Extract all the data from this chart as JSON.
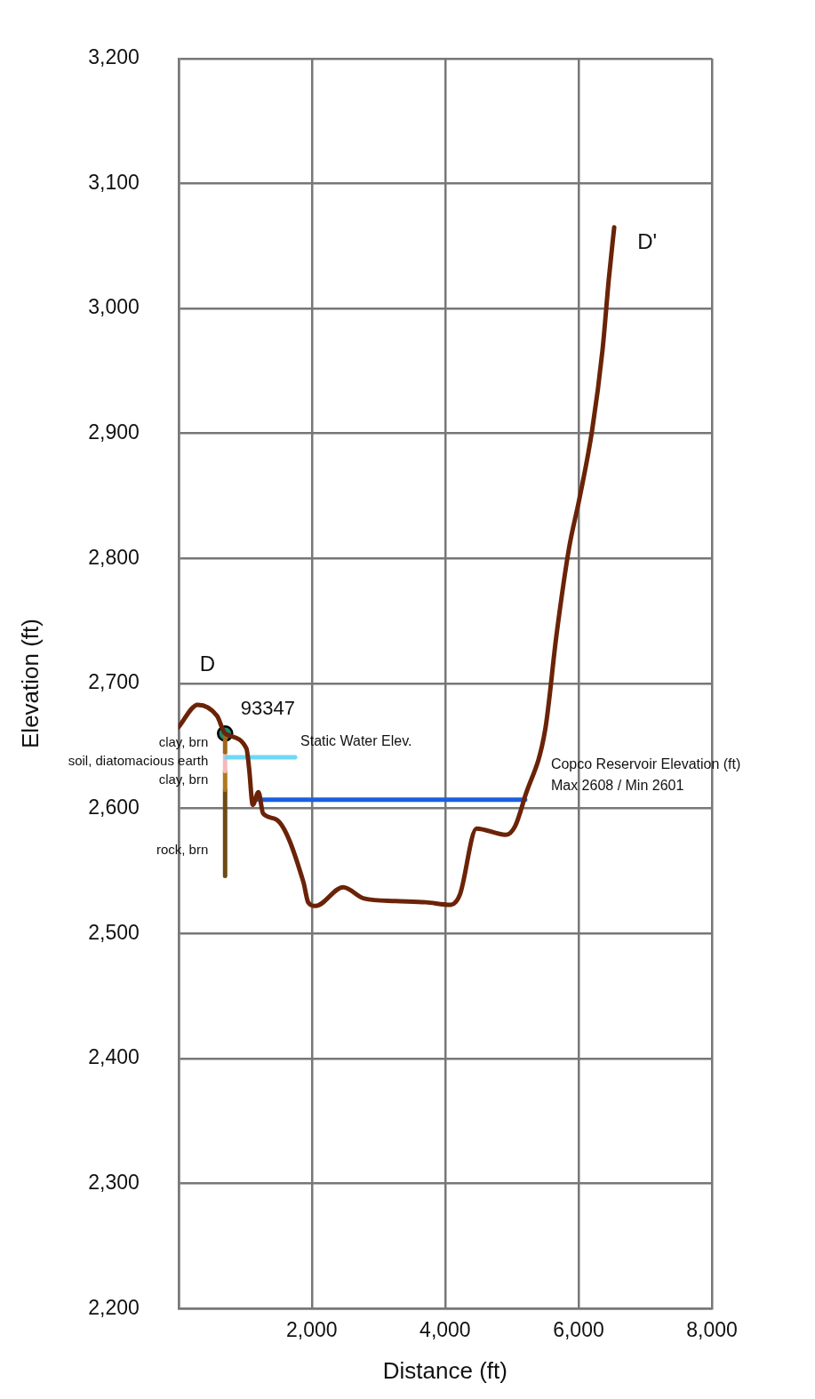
{
  "chart_data": {
    "type": "line",
    "xlabel": "Distance (ft)",
    "ylabel": "Elevation (ft)",
    "xlim": [
      0,
      8000
    ],
    "ylim": [
      2200,
      3200
    ],
    "xticks": [
      {
        "value": 0,
        "label": null
      },
      {
        "value": 2000,
        "label": "2,000"
      },
      {
        "value": 4000,
        "label": "4,000"
      },
      {
        "value": 6000,
        "label": "6,000"
      },
      {
        "value": 8000,
        "label": "8,000"
      }
    ],
    "yticks": [
      {
        "value": 2200,
        "label": "2,200"
      },
      {
        "value": 2300,
        "label": "2,300"
      },
      {
        "value": 2400,
        "label": "2,400"
      },
      {
        "value": 2500,
        "label": "2,500"
      },
      {
        "value": 2600,
        "label": "2,600"
      },
      {
        "value": 2700,
        "label": "2,700"
      },
      {
        "value": 2800,
        "label": "2,800"
      },
      {
        "value": 2900,
        "label": "2,900"
      },
      {
        "value": 3000,
        "label": "3,000"
      },
      {
        "value": 3100,
        "label": "3,100"
      },
      {
        "value": 3200,
        "label": "3,200"
      }
    ],
    "grid": true,
    "legend": false,
    "marker": "none",
    "line_style": "solid",
    "series": [
      {
        "color": "#6b2308",
        "x": [
          0,
          290,
          580,
          700,
          1020,
          1060,
          1115,
          1200,
          1270,
          1475,
          1875,
          1945,
          2055,
          2470,
          2785,
          3255,
          3710,
          4080,
          4220,
          4470,
          4910,
          5050,
          5200,
          5500,
          5670,
          5860,
          6010,
          6205,
          6360,
          6455,
          6535
        ],
        "values": [
          2665,
          2683,
          2674,
          2660,
          2648,
          2632,
          2603,
          2613,
          2596,
          2591,
          2541,
          2525,
          2522,
          2537,
          2528,
          2526,
          2525,
          2523,
          2531,
          2584,
          2579,
          2586,
          2610,
          2663,
          2739,
          2809,
          2847,
          2903,
          2967,
          3024,
          3065
        ]
      },
      {
        "color": "#1a5fe0",
        "x": [
          1200,
          5200
        ],
        "values": [
          2607,
          2607
        ]
      },
      {
        "color": "#6dd8f5",
        "x": [
          720,
          1750
        ],
        "values": [
          2641,
          2641
        ]
      },
      {
        "color": "#a0661a",
        "x": [
          700,
          700
        ],
        "values": [
          2660,
          2645
        ]
      },
      {
        "color": "#f7b8bc",
        "x": [
          700,
          700
        ],
        "values": [
          2645,
          2630
        ]
      },
      {
        "color": "#b07820",
        "x": [
          700,
          700
        ],
        "values": [
          2630,
          2615
        ]
      },
      {
        "color": "#6e4a14",
        "x": [
          700,
          700
        ],
        "values": [
          2615,
          2546
        ]
      },
      {
        "type": "scatter",
        "marker": "circle",
        "color": "#1a8a70",
        "x": [
          700
        ],
        "values": [
          2660
        ]
      }
    ],
    "annotations": [
      {
        "text": "D",
        "x": 290,
        "y": 2683
      },
      {
        "text": "D'",
        "x": 6535,
        "y": 3065
      },
      {
        "text": "93347",
        "x": 700,
        "y": 2660
      },
      {
        "text": "Static Water Elev.",
        "x": 1750,
        "y": 2641
      },
      {
        "text": "Copco Reservoir Elevation (ft)",
        "x": 5200,
        "y": 2607
      },
      {
        "text": "Max 2608 / Min 2601",
        "x": 5200,
        "y": 2607
      },
      {
        "text": "clay, brn",
        "x": 700,
        "y": 2652.5
      },
      {
        "text": "soil, diatomacious earth",
        "x": 700,
        "y": 2637.5
      },
      {
        "text": "clay, brn",
        "x": 700,
        "y": 2622.5
      },
      {
        "text": "rock, brn",
        "x": 700,
        "y": 2580.5
      }
    ]
  }
}
